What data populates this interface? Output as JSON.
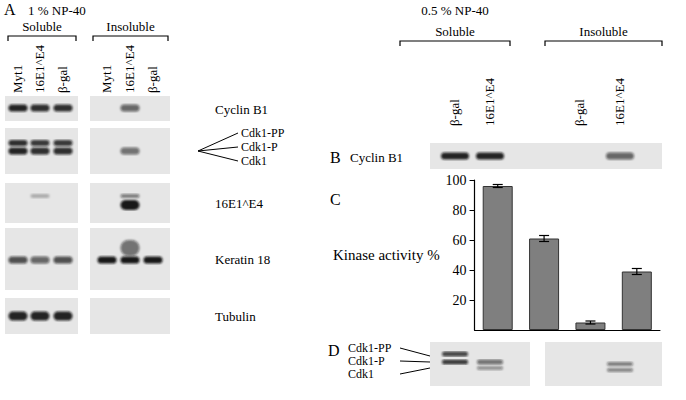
{
  "panel_a": {
    "letter": "A",
    "condition": "1 % NP-40",
    "groups": [
      {
        "label": "Soluble",
        "lanes": [
          "Myt1",
          "16E1^E4",
          "β-gal"
        ]
      },
      {
        "label": "Insoluble",
        "lanes": [
          "Myt1",
          "16E1^E4",
          "β-gal"
        ]
      }
    ],
    "blots": [
      "Cyclin B1",
      [
        "Cdk1-PP",
        "Cdk1-P",
        "Cdk1"
      ],
      "16E1^E4",
      "Keratin 18",
      "Tubulin"
    ]
  },
  "panel_b": {
    "letter": "B",
    "condition": "0.5 % NP-40",
    "groups": [
      {
        "label": "Soluble",
        "lanes": [
          "β-gal",
          "16E1^E4"
        ]
      },
      {
        "label": "Insoluble",
        "lanes": [
          "β-gal",
          "16E1^E4"
        ]
      }
    ],
    "blot": "Cyclin B1"
  },
  "panel_c": {
    "letter": "C"
  },
  "chart_data": {
    "type": "bar",
    "y_label": "Kinase activity %",
    "categories": [
      null,
      null,
      null,
      null
    ],
    "values": [
      96,
      61,
      5,
      39
    ],
    "errors": [
      1,
      2,
      1,
      2
    ],
    "color": "#7f7f7f",
    "ylim": [
      0,
      100
    ],
    "yticks": [
      20,
      40,
      60,
      80,
      100
    ],
    "grid": false
  },
  "panel_d": {
    "letter": "D",
    "bands": [
      "Cdk1-PP",
      "Cdk1-P",
      "Cdk1"
    ]
  }
}
